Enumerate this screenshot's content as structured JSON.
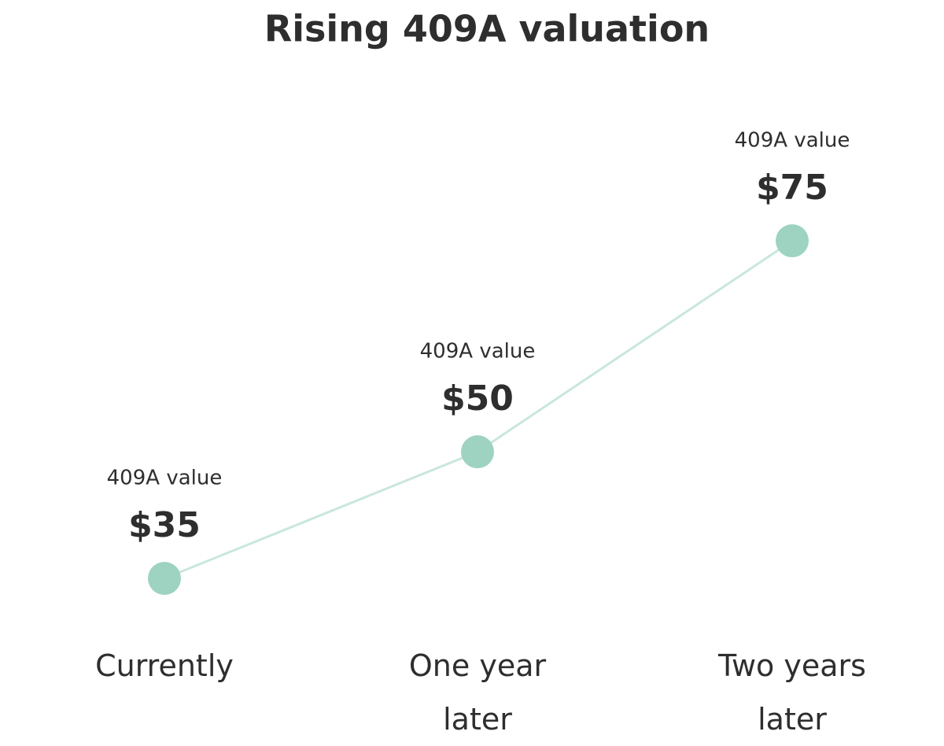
{
  "chart_data": {
    "type": "line",
    "title": "Rising 409A valuation",
    "categories": [
      "Currently",
      "One year later",
      "Two years later"
    ],
    "values": [
      35,
      50,
      75
    ],
    "value_labels": [
      "$35",
      "$50",
      "$75"
    ],
    "point_label": "409A value",
    "color": "#9dd3c0"
  }
}
